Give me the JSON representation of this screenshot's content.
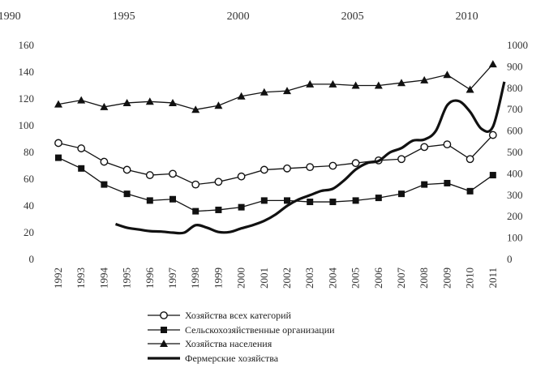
{
  "chart_data": {
    "type": "line",
    "top_axis_labels": [
      "1990",
      "1995",
      "2000",
      "2005",
      "2010"
    ],
    "categories": [
      "1992",
      "1993",
      "1994",
      "1995",
      "1996",
      "1997",
      "1998",
      "1999",
      "2000",
      "2001",
      "2002",
      "2003",
      "2004",
      "2005",
      "2006",
      "2007",
      "2008",
      "2009",
      "2010",
      "2011"
    ],
    "left_axis": {
      "ticks": [
        0,
        20,
        40,
        60,
        80,
        100,
        120,
        140,
        160
      ],
      "ylim": [
        0,
        160
      ]
    },
    "right_axis": {
      "ticks": [
        0,
        100,
        200,
        300,
        400,
        500,
        600,
        700,
        800,
        900,
        1000
      ],
      "ylim": [
        0,
        1000
      ]
    },
    "series": [
      {
        "name": "Хозяйства всех категорий",
        "axis": "left",
        "marker": "circle-open",
        "values": [
          87,
          83,
          73,
          67,
          63,
          64,
          56,
          58,
          62,
          67,
          68,
          69,
          70,
          72,
          74,
          75,
          84,
          86,
          75,
          93
        ]
      },
      {
        "name": "Сельскохозяйственные организации",
        "axis": "left",
        "marker": "square",
        "values": [
          76,
          68,
          56,
          49,
          44,
          45,
          36,
          37,
          39,
          44,
          44,
          43,
          43,
          44,
          46,
          49,
          56,
          57,
          51,
          63
        ]
      },
      {
        "name": "Хозяйства населения",
        "axis": "left",
        "marker": "triangle",
        "values": [
          116,
          119,
          114,
          117,
          118,
          117,
          112,
          115,
          122,
          125,
          126,
          131,
          131,
          130,
          130,
          132,
          134,
          138,
          127,
          146
        ]
      },
      {
        "name": "Фермерские хозяйства",
        "axis": "right",
        "marker": "none",
        "x": [
          1994.5,
          1995,
          1995.5,
          1996,
          1996.5,
          1997,
          1997.5,
          1998,
          1998.5,
          1999,
          1999.5,
          2000,
          2000.5,
          2001,
          2001.5,
          2002,
          2002.5,
          2003,
          2003.5,
          2004,
          2004.5,
          2005,
          2005.5,
          2006,
          2006.5,
          2007,
          2007.5,
          2008,
          2008.5,
          2009,
          2009.5,
          2010,
          2010.5,
          2011,
          2011.5
        ],
        "values": [
          165,
          148,
          140,
          132,
          130,
          125,
          125,
          160,
          148,
          128,
          128,
          145,
          160,
          180,
          210,
          250,
          280,
          300,
          320,
          330,
          370,
          420,
          450,
          460,
          500,
          520,
          555,
          560,
          600,
          720,
          740,
          690,
          610,
          620,
          830
        ]
      }
    ],
    "legend_position": "bottom",
    "grid": false
  }
}
